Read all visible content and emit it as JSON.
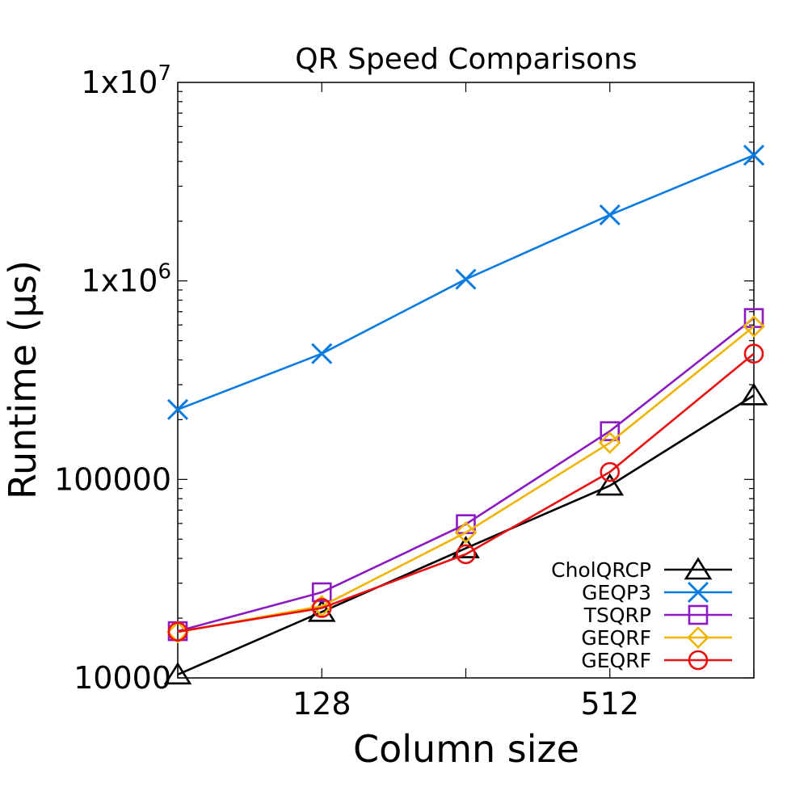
{
  "chart_data": {
    "type": "line",
    "title": "QR Speed Comparisons",
    "xlabel": "Column size",
    "ylabel": "Runtime (μs)",
    "x_scale": "log2",
    "y_scale": "log10",
    "x": [
      64,
      128,
      256,
      512,
      1024
    ],
    "xlim": [
      64,
      1024
    ],
    "ylim": [
      10000,
      10000000
    ],
    "x_ticks": [
      {
        "value": 128,
        "label": "128"
      },
      {
        "value": 512,
        "label": "512"
      }
    ],
    "y_ticks": [
      {
        "value": 10000,
        "label": "10000"
      },
      {
        "value": 100000,
        "label": "100000"
      },
      {
        "value": 1000000,
        "label": "1x10",
        "exp": "6"
      },
      {
        "value": 10000000,
        "label": "1x10",
        "exp": "7"
      }
    ],
    "legend_position": "bottom-right",
    "grid": false,
    "series": [
      {
        "name": "CholQRCP",
        "color": "#000000",
        "marker": "triangle",
        "values": [
          10400,
          21500,
          45000,
          93000,
          265000
        ]
      },
      {
        "name": "GEQP3",
        "color": "#0a7be0",
        "marker": "x",
        "values": [
          225000,
          430000,
          1020000,
          2150000,
          4300000
        ]
      },
      {
        "name": "TSQRP",
        "color": "#8b1ac2",
        "marker": "square",
        "values": [
          17200,
          27000,
          59500,
          175000,
          650000
        ]
      },
      {
        "name": "GEQRF",
        "color": "#f0b400",
        "marker": "diamond",
        "values": [
          17000,
          23000,
          54000,
          153000,
          590000
        ]
      },
      {
        "name": "GEQRF",
        "color": "#e81010",
        "marker": "circle",
        "values": [
          17100,
          22500,
          42000,
          109000,
          430000
        ]
      }
    ]
  }
}
